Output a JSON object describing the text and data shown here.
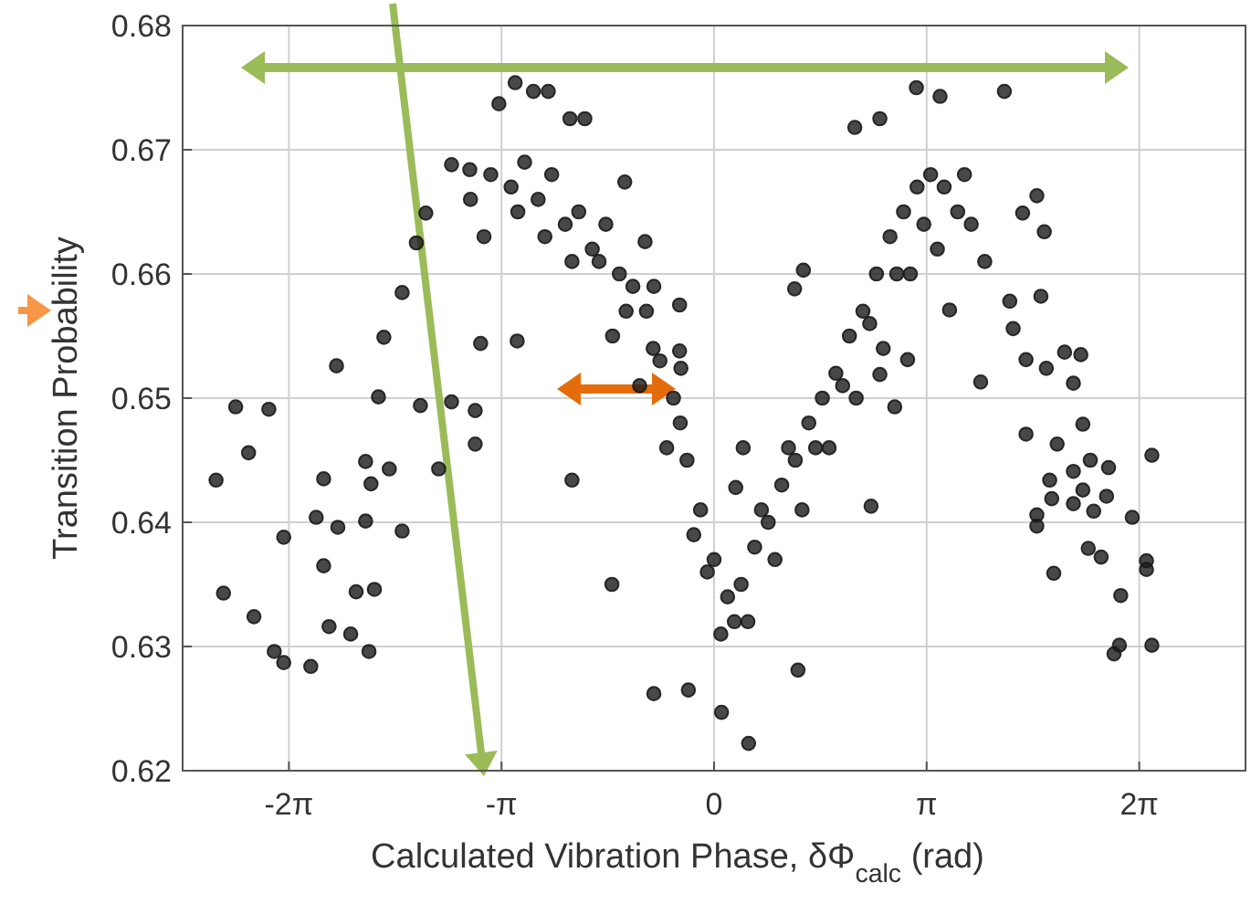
{
  "chart_data": {
    "type": "scatter",
    "xlabel": "Calculated Vibration Phase, δΦ$_{calc}$ (rad)",
    "ylabel": "Transition Probability",
    "xlim": [
      -7.854,
      7.854
    ],
    "ylim": [
      0.62,
      0.68
    ],
    "xticks": [
      {
        "value": -6.2832,
        "label": "-2π"
      },
      {
        "value": -3.1416,
        "label": "-π"
      },
      0,
      {
        "value": 3.1416,
        "label": "π"
      },
      {
        "value": 6.2832,
        "label": "2π"
      }
    ],
    "yticks": [
      0.62,
      0.63,
      0.64,
      0.65,
      0.66,
      0.67,
      0.68
    ],
    "grid": true,
    "marker": "circle",
    "series": [
      {
        "color": "#1a1a1a",
        "x": [
          -7.36,
          -7.07,
          -6.58,
          -6.88,
          -7.25,
          -6.8,
          -6.5,
          -6.36,
          -5.96,
          -5.69,
          -5.37,
          -5.1,
          -5.02,
          -5.29,
          -5.77,
          -6.36,
          -5.88,
          -5.56,
          -5.15,
          -4.61,
          -5.77,
          -5.07,
          -5.58,
          -5.15,
          -4.8,
          -4.96,
          -4.88,
          -4.61,
          -4.4,
          -4.26,
          -4.34,
          -3.53,
          -3.53,
          -3.88,
          -4.07,
          -3.45,
          -2.91,
          -3.88,
          -3.61,
          -3.18,
          -2.94,
          -2.67,
          -2.45,
          -2.13,
          -1.91,
          -1.32,
          -1.02,
          -0.89,
          -0.51,
          -0.51,
          -0.49,
          -2.1,
          -1.51,
          -0.89,
          -0.38,
          0.11,
          -3.6,
          -3.3,
          -3.0,
          -2.8,
          -2.6,
          -2.4,
          -2.2,
          -2.0,
          -1.8,
          -1.6,
          -1.4,
          -1.2,
          -1.0,
          -0.8,
          -0.6,
          -0.4,
          -0.2,
          0.0,
          0.2,
          -3.4,
          -2.9,
          -2.5,
          -2.1,
          -1.7,
          -1.3,
          -0.9,
          -0.5,
          -0.1,
          0.3,
          0.1,
          -0.3,
          -0.7,
          -1.1,
          -1.5,
          2.99,
          3.34,
          4.29,
          2.08,
          2.45,
          1.19,
          1.32,
          0.43,
          0.32,
          2.32,
          2.67,
          2.45,
          2.86,
          1.24,
          0.51,
          3.48,
          3.94,
          4.88,
          4.83,
          4.77,
          4.56,
          4.37,
          4.42,
          4.61,
          4.91,
          5.18,
          5.42,
          5.31,
          5.45,
          4.61,
          5.07,
          5.56,
          5.83,
          6.47,
          4.96,
          5.31,
          5.45,
          5.8,
          5.61,
          5.31,
          4.99,
          4.77,
          4.77,
          6.18,
          5.53,
          5.72,
          6.39,
          6.39,
          5.02,
          6.01,
          5.91,
          5.99,
          6.47,
          0.4,
          0.6,
          0.8,
          1.0,
          1.2,
          1.4,
          1.6,
          1.8,
          2.0,
          2.2,
          2.4,
          2.6,
          2.8,
          3.0,
          3.2,
          3.4,
          3.6,
          3.8,
          4.0,
          0.5,
          0.9,
          1.3,
          1.7,
          2.1,
          2.5,
          2.9,
          3.3,
          3.7,
          0.7,
          1.1,
          1.5,
          1.9,
          2.3,
          2.7,
          3.1
        ],
        "values": [
          0.6434,
          0.6493,
          0.6491,
          0.6456,
          0.6343,
          0.6324,
          0.6296,
          0.6287,
          0.6284,
          0.6316,
          0.631,
          0.6296,
          0.6346,
          0.6344,
          0.6365,
          0.6388,
          0.6404,
          0.6396,
          0.6401,
          0.6393,
          0.6435,
          0.6431,
          0.6526,
          0.6449,
          0.6443,
          0.6501,
          0.6549,
          0.6585,
          0.6625,
          0.6649,
          0.6494,
          0.6463,
          0.649,
          0.6497,
          0.6443,
          0.6544,
          0.6546,
          0.6688,
          0.6684,
          0.6737,
          0.6754,
          0.6747,
          0.6747,
          0.6725,
          0.6725,
          0.6674,
          0.6626,
          0.659,
          0.6575,
          0.6538,
          0.6524,
          0.6434,
          0.635,
          0.6262,
          0.6265,
          0.6247,
          0.666,
          0.668,
          0.667,
          0.669,
          0.666,
          0.668,
          0.664,
          0.665,
          0.662,
          0.664,
          0.66,
          0.659,
          0.657,
          0.653,
          0.65,
          0.645,
          0.641,
          0.637,
          0.634,
          0.663,
          0.665,
          0.663,
          0.661,
          0.661,
          0.657,
          0.654,
          0.648,
          0.636,
          0.632,
          0.631,
          0.639,
          0.646,
          0.651,
          0.655,
          0.675,
          0.6743,
          0.6747,
          0.6718,
          0.6725,
          0.6588,
          0.6603,
          0.646,
          0.6428,
          0.6413,
          0.6493,
          0.6519,
          0.6531,
          0.6281,
          0.6222,
          0.6571,
          0.6513,
          0.6634,
          0.6582,
          0.6663,
          0.6649,
          0.6578,
          0.6556,
          0.6531,
          0.6524,
          0.6537,
          0.6535,
          0.6512,
          0.6479,
          0.6471,
          0.6463,
          0.645,
          0.6444,
          0.6454,
          0.6434,
          0.6441,
          0.6426,
          0.6421,
          0.6409,
          0.6415,
          0.6419,
          0.6406,
          0.6397,
          0.6404,
          0.6379,
          0.6372,
          0.6369,
          0.6362,
          0.6359,
          0.6341,
          0.6294,
          0.6301,
          0.6301,
          0.635,
          0.638,
          0.64,
          0.643,
          0.645,
          0.648,
          0.65,
          0.652,
          0.655,
          0.657,
          0.66,
          0.663,
          0.665,
          0.667,
          0.668,
          0.667,
          0.665,
          0.664,
          0.661,
          0.632,
          0.637,
          0.641,
          0.646,
          0.65,
          0.654,
          0.66,
          0.662,
          0.668,
          0.641,
          0.646,
          0.646,
          0.651,
          0.656,
          0.66,
          0.664
        ]
      }
    ]
  }
}
